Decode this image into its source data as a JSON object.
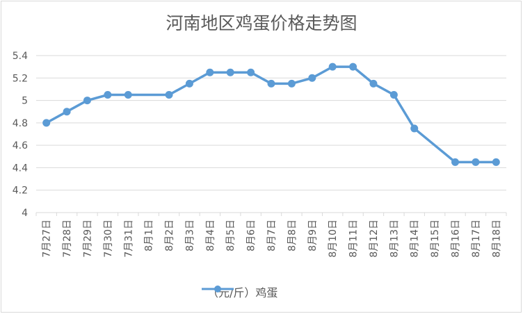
{
  "chart_data": {
    "type": "line",
    "title": "河南地区鸡蛋价格走势图",
    "categories": [
      "7月27日",
      "7月28日",
      "7月29日",
      "7月30日",
      "7月31日",
      "8月1日",
      "8月2日",
      "8月3日",
      "8月4日",
      "8月5日",
      "8月6日",
      "8月7日",
      "8月8日",
      "8月9日",
      "8月10日",
      "8月11日",
      "8月12日",
      "8月13日",
      "8月14日",
      "8月15日",
      "8月16日",
      "8月17日",
      "8月18日"
    ],
    "series": [
      {
        "name": "（元/斤）鸡蛋",
        "points": [
          {
            "x": "7月27日",
            "y": 4.8
          },
          {
            "x": "7月28日",
            "y": 4.9
          },
          {
            "x": "7月29日",
            "y": 5.0
          },
          {
            "x": "7月30日",
            "y": 5.05
          },
          {
            "x": "7月31日",
            "y": 5.05
          },
          {
            "x": "8月2日",
            "y": 5.05
          },
          {
            "x": "8月3日",
            "y": 5.15
          },
          {
            "x": "8月4日",
            "y": 5.25
          },
          {
            "x": "8月5日",
            "y": 5.25
          },
          {
            "x": "8月6日",
            "y": 5.25
          },
          {
            "x": "8月7日",
            "y": 5.15
          },
          {
            "x": "8月8日",
            "y": 5.15
          },
          {
            "x": "8月9日",
            "y": 5.2
          },
          {
            "x": "8月10日",
            "y": 5.3
          },
          {
            "x": "8月11日",
            "y": 5.3
          },
          {
            "x": "8月12日",
            "y": 5.15
          },
          {
            "x": "8月13日",
            "y": 5.05
          },
          {
            "x": "8月14日",
            "y": 4.75
          },
          {
            "x": "8月16日",
            "y": 4.45
          },
          {
            "x": "8月17日",
            "y": 4.45
          },
          {
            "x": "8月18日",
            "y": 4.45
          }
        ]
      }
    ],
    "ylim": [
      4,
      5.4
    ],
    "yticks": [
      4,
      4.2,
      4.4,
      4.6,
      4.8,
      5,
      5.2,
      5.4
    ],
    "ytick_labels": [
      "4",
      "4.2",
      "4.4",
      "4.6",
      "4.8",
      "5",
      "5.2",
      "5.4"
    ],
    "grid": true,
    "legend_position": "bottom",
    "colors": {
      "line": "#5b9bd5",
      "grid": "#d9d9d9",
      "text": "#595959"
    }
  }
}
